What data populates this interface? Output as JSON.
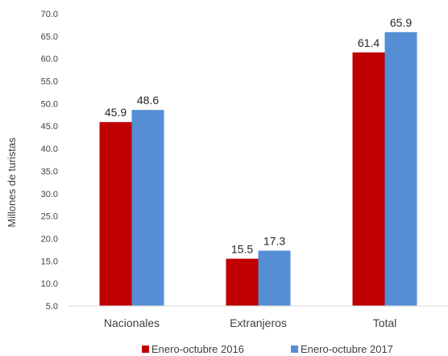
{
  "chart_data": {
    "type": "bar",
    "categories": [
      "Nacionales",
      "Extranjeros",
      "Total"
    ],
    "series": [
      {
        "name": "Enero-octubre 2016",
        "values": [
          45.9,
          15.5,
          61.4
        ],
        "color": "#c00000"
      },
      {
        "name": "Enero-octubre 2017",
        "values": [
          48.6,
          17.3,
          65.9
        ],
        "color": "#558ed5"
      }
    ],
    "ylabel": "Millones de turistas",
    "xlabel": "",
    "ylim": [
      5.0,
      70.0
    ],
    "ytick_step": 5,
    "yticks": [
      "5.0",
      "10.0",
      "15.0",
      "20.0",
      "25.0",
      "30.0",
      "35.0",
      "40.0",
      "45.0",
      "50.0",
      "55.0",
      "60.0",
      "65.0",
      "70.0"
    ],
    "data_labels": [
      [
        "45.9",
        "15.5",
        "61.4"
      ],
      [
        "48.6",
        "17.3",
        "65.9"
      ]
    ],
    "grid": false,
    "legend_position": "bottom-right"
  }
}
